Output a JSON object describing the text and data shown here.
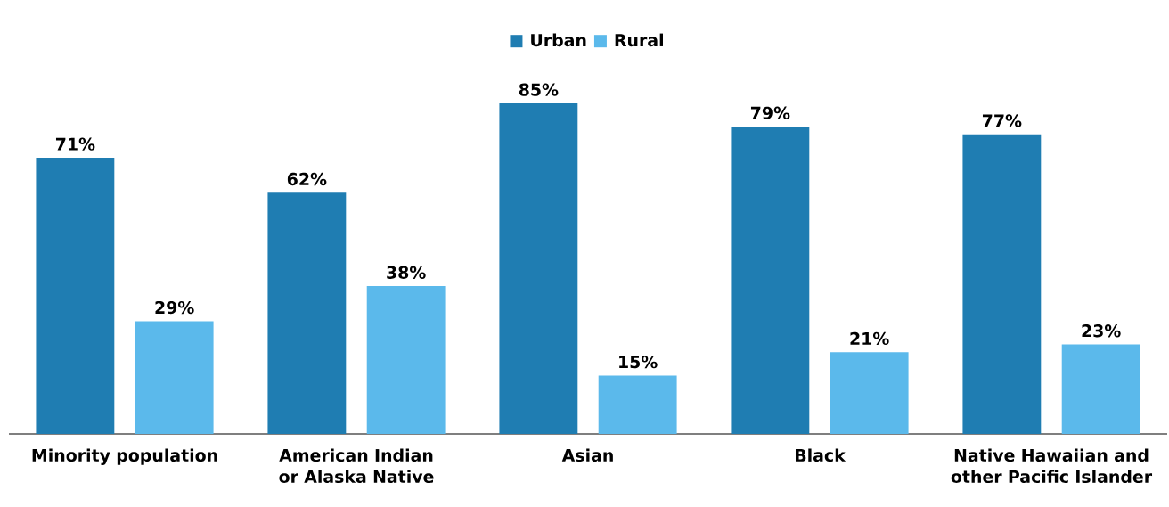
{
  "chart_data": {
    "type": "bar",
    "categories": [
      "Minority population",
      "American Indian or Alaska Native",
      "Asian",
      "Black",
      "Native Hawaiian and other Pacific Islander"
    ],
    "series": [
      {
        "name": "Urban",
        "color": "#1f7db2",
        "values": [
          71,
          62,
          85,
          79,
          77
        ],
        "value_labels": [
          "71%",
          "62%",
          "85%",
          "79%",
          "77%"
        ]
      },
      {
        "name": "Rural",
        "color": "#5bb9eb",
        "values": [
          29,
          38,
          15,
          21,
          23
        ],
        "value_labels": [
          "29%",
          "38%",
          "15%",
          "21%",
          "23%"
        ]
      }
    ],
    "legend": "top"
  }
}
